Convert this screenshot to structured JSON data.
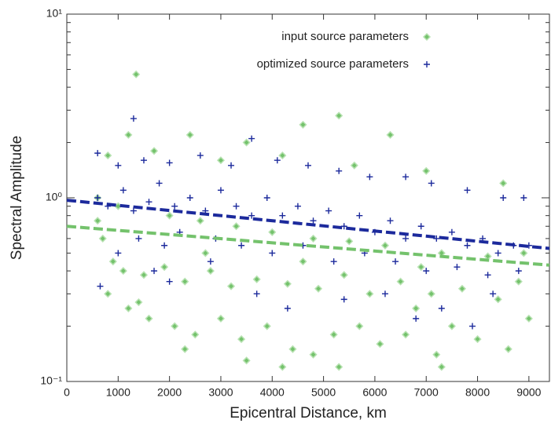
{
  "chart_data": {
    "type": "scatter",
    "x_label": "Epicentral Distance, km",
    "y_label": "Spectral Amplitude",
    "xlim": [
      0,
      9400
    ],
    "xticks": [
      0,
      1000,
      2000,
      3000,
      4000,
      5000,
      6000,
      7000,
      8000,
      9000
    ],
    "ylim": [
      0.1,
      10
    ],
    "yscale": "log",
    "yticks": [
      {
        "value": 0.1,
        "label": "10⁻¹"
      },
      {
        "value": 1,
        "label": "10⁰"
      },
      {
        "value": 10,
        "label": "10¹"
      }
    ],
    "yminorticks": [
      0.2,
      0.3,
      0.4,
      0.5,
      0.6,
      0.7,
      0.8,
      0.9,
      2,
      3,
      4,
      5,
      6,
      7,
      8,
      9
    ],
    "legend": "upper center",
    "series": [
      {
        "name": "input source parameters",
        "color": "#74c26c",
        "marker": "diamond",
        "x": [
          1350,
          4600,
          5300,
          1200,
          2400,
          3500,
          6300,
          800,
          1700,
          3000,
          4200,
          5600,
          7000,
          8500,
          600,
          1000,
          2000,
          2600,
          3300,
          4000,
          4800,
          5500,
          6200,
          7300,
          8200,
          8900,
          700,
          900,
          1100,
          1500,
          1900,
          2300,
          2800,
          3200,
          3700,
          4300,
          4900,
          5400,
          5900,
          6500,
          7100,
          7700,
          8400,
          8800,
          800,
          1200,
          1600,
          2100,
          2500,
          3000,
          3400,
          3900,
          4400,
          4800,
          5200,
          5700,
          6100,
          6600,
          7200,
          7500,
          8000,
          8600,
          2300,
          3500,
          4200,
          5300,
          7300,
          1400,
          6800,
          9000,
          600,
          2700,
          4600,
          6900
        ],
        "values": [
          4.7,
          2.5,
          2.8,
          2.2,
          2.2,
          2.0,
          2.2,
          1.7,
          1.8,
          1.6,
          1.7,
          1.5,
          1.4,
          1.2,
          1.0,
          0.9,
          0.8,
          0.75,
          0.7,
          0.65,
          0.6,
          0.58,
          0.55,
          0.5,
          0.48,
          0.5,
          0.6,
          0.45,
          0.4,
          0.38,
          0.42,
          0.35,
          0.4,
          0.33,
          0.36,
          0.34,
          0.32,
          0.38,
          0.3,
          0.35,
          0.3,
          0.32,
          0.28,
          0.35,
          0.3,
          0.25,
          0.22,
          0.2,
          0.18,
          0.22,
          0.17,
          0.2,
          0.15,
          0.14,
          0.18,
          0.2,
          0.16,
          0.18,
          0.14,
          0.2,
          0.17,
          0.15,
          0.15,
          0.13,
          0.12,
          0.12,
          0.12,
          0.27,
          0.25,
          0.22,
          0.75,
          0.5,
          0.45,
          0.42
        ]
      },
      {
        "name": "optimized source parameters",
        "color": "#1c2a9c",
        "marker": "plus",
        "x": [
          1300,
          600,
          1000,
          1500,
          2000,
          2600,
          3200,
          3600,
          4100,
          4700,
          5300,
          5900,
          6600,
          7100,
          7800,
          8500,
          8900,
          600,
          800,
          1100,
          1300,
          1600,
          1800,
          2100,
          2400,
          2700,
          3000,
          3300,
          3600,
          3900,
          4200,
          4500,
          4800,
          5100,
          5400,
          5700,
          6000,
          6300,
          6600,
          6900,
          7200,
          7500,
          7800,
          8100,
          8400,
          8700,
          9000,
          650,
          1000,
          1400,
          1900,
          2200,
          2900,
          3400,
          4000,
          4600,
          5200,
          5800,
          6400,
          7000,
          7600,
          8200,
          8800,
          2000,
          3700,
          4300,
          5400,
          6200,
          6800,
          7300,
          7900,
          8300,
          1700,
          2800
        ],
        "values": [
          2.7,
          1.75,
          1.5,
          1.6,
          1.55,
          1.7,
          1.5,
          2.1,
          1.6,
          1.5,
          1.4,
          1.3,
          1.3,
          1.2,
          1.1,
          1.0,
          1.0,
          1.0,
          0.9,
          1.1,
          0.85,
          0.95,
          1.2,
          0.9,
          1.0,
          0.85,
          1.1,
          0.9,
          0.8,
          1.0,
          0.8,
          0.9,
          0.75,
          0.85,
          0.7,
          0.8,
          0.65,
          0.75,
          0.6,
          0.7,
          0.6,
          0.65,
          0.55,
          0.6,
          0.5,
          0.55,
          0.55,
          0.33,
          0.5,
          0.6,
          0.55,
          0.65,
          0.6,
          0.55,
          0.5,
          0.55,
          0.45,
          0.5,
          0.45,
          0.4,
          0.42,
          0.38,
          0.4,
          0.35,
          0.3,
          0.25,
          0.28,
          0.3,
          0.22,
          0.25,
          0.2,
          0.3,
          0.4,
          0.45
        ]
      }
    ],
    "trend_lines": [
      {
        "color": "#74c26c",
        "x": [
          0,
          9400
        ],
        "values": [
          0.7,
          0.43
        ]
      },
      {
        "color": "#1c2a9c",
        "x": [
          0,
          9400
        ],
        "values": [
          0.97,
          0.53
        ]
      }
    ]
  }
}
